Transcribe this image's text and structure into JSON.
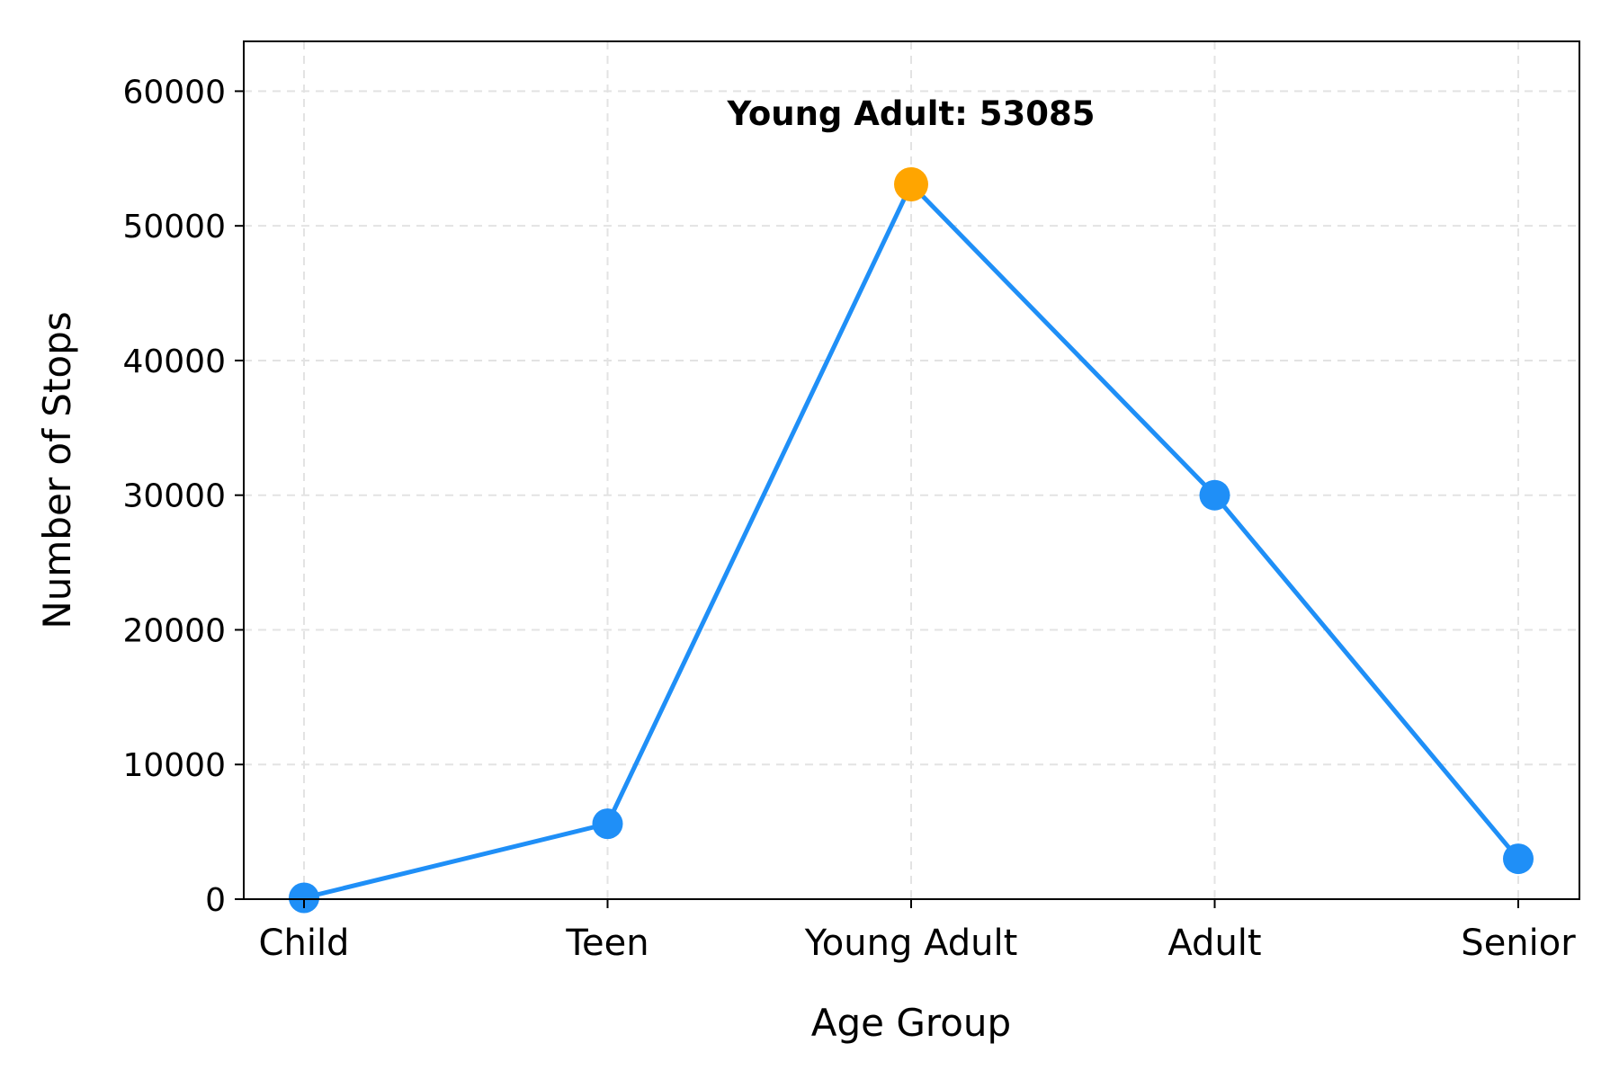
{
  "chart_data": {
    "type": "line",
    "categories": [
      "Child",
      "Teen",
      "Young Adult",
      "Adult",
      "Senior"
    ],
    "series": [
      {
        "values": [
          100,
          5600,
          53085,
          30000,
          3000
        ]
      }
    ],
    "highlight": {
      "index": 2,
      "label": "Young Adult: 53085",
      "color": "#ffa500"
    },
    "title": "",
    "xlabel": "Age Group",
    "ylabel": "Number of Stops",
    "ylim": [
      0,
      63700
    ],
    "yticks": [
      0,
      10000,
      20000,
      30000,
      40000,
      50000,
      60000
    ],
    "grid": true,
    "line_color": "#1f8ff7"
  }
}
